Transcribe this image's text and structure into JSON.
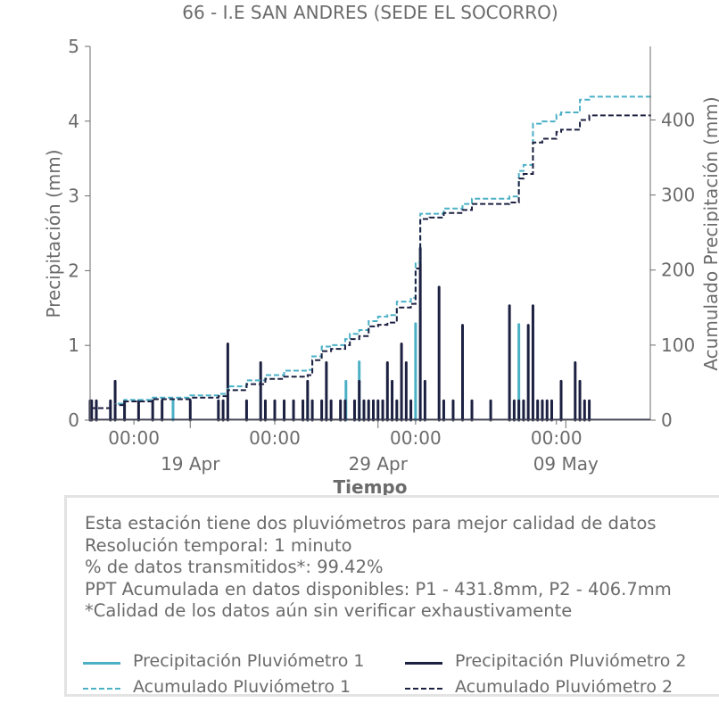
{
  "colors": {
    "p1": "#4bb0c6",
    "p2": "#1c2041",
    "text": "#6b6b6b",
    "axis": "#6b6b6b"
  },
  "chart_data": {
    "type": "line",
    "title": "66 - I.E SAN ANDRES (SEDE EL SOCORRO)",
    "xlabel": "Tiempo",
    "ylabel_left": "Precipitación (mm)",
    "ylabel_right": "Acumulado Precipitación (mm)",
    "x_range": [
      "2025-04-13T16:00",
      "2025-05-13T12:00"
    ],
    "ylim_left": [
      0,
      5
    ],
    "ylim_right": [
      0,
      498
    ],
    "yticks_left": [
      0,
      1,
      2,
      3,
      4,
      5
    ],
    "yticks_right": [
      0,
      100,
      200,
      300,
      400
    ],
    "xticks_minor": [
      {
        "x": "2025-04-16T00:00",
        "label": "00:00"
      },
      {
        "x": "2025-04-23T12:00",
        "label": "00:00"
      },
      {
        "x": "2025-05-01T00:00",
        "label": "00:00"
      },
      {
        "x": "2025-05-08T12:00",
        "label": "00:00"
      }
    ],
    "xticks_major": [
      {
        "x": "2025-04-19T00:00",
        "label": "19 Apr"
      },
      {
        "x": "2025-04-29T00:00",
        "label": "29 Apr"
      },
      {
        "x": "2025-05-09T00:00",
        "label": "09 May"
      }
    ],
    "series": [
      {
        "name": "Precipitación Pluviómetro 1",
        "axis": "left",
        "style": "solid",
        "color": "#4bb0c6",
        "points": [
          [
            "2025-04-18T02:00",
            0.27
          ],
          [
            "2025-04-25T06:00",
            0.27
          ],
          [
            "2025-04-27T07:00",
            0.52
          ],
          [
            "2025-04-28T00:00",
            0.78
          ],
          [
            "2025-05-01T00:00",
            1.29
          ],
          [
            "2025-05-06T12:00",
            1.28
          ]
        ]
      },
      {
        "name": "Precipitación Pluviómetro 2",
        "axis": "left",
        "style": "solid",
        "color": "#1c2041",
        "points": [
          [
            "2025-04-13T16:00",
            0.26
          ],
          [
            "2025-04-13T18:00",
            0.26
          ],
          [
            "2025-04-14T00:00",
            0.26
          ],
          [
            "2025-04-14T18:00",
            0.26
          ],
          [
            "2025-04-15T00:00",
            0.52
          ],
          [
            "2025-04-15T12:00",
            0.26
          ],
          [
            "2025-04-16T06:00",
            0.26
          ],
          [
            "2025-04-17T00:00",
            0.26
          ],
          [
            "2025-04-17T12:00",
            0.26
          ],
          [
            "2025-04-19T00:00",
            0.26
          ],
          [
            "2025-04-20T12:00",
            0.26
          ],
          [
            "2025-04-20T18:00",
            0.26
          ],
          [
            "2025-04-21T00:00",
            1.02
          ],
          [
            "2025-04-22T00:00",
            0.26
          ],
          [
            "2025-04-22T18:00",
            0.77
          ],
          [
            "2025-04-23T00:00",
            0.26
          ],
          [
            "2025-04-23T12:00",
            0.26
          ],
          [
            "2025-04-24T00:00",
            0.26
          ],
          [
            "2025-04-24T12:00",
            0.26
          ],
          [
            "2025-04-25T00:00",
            0.26
          ],
          [
            "2025-04-25T06:00",
            0.52
          ],
          [
            "2025-04-25T12:00",
            0.26
          ],
          [
            "2025-04-26T00:00",
            0.26
          ],
          [
            "2025-04-26T06:00",
            0.77
          ],
          [
            "2025-04-26T12:00",
            0.26
          ],
          [
            "2025-04-27T00:00",
            0.26
          ],
          [
            "2025-04-27T06:00",
            0.26
          ],
          [
            "2025-04-27T18:00",
            0.26
          ],
          [
            "2025-04-28T00:00",
            0.52
          ],
          [
            "2025-04-28T06:00",
            0.26
          ],
          [
            "2025-04-28T12:00",
            0.26
          ],
          [
            "2025-04-28T18:00",
            0.26
          ],
          [
            "2025-04-29T00:00",
            0.26
          ],
          [
            "2025-04-29T06:00",
            0.26
          ],
          [
            "2025-04-29T12:00",
            0.77
          ],
          [
            "2025-04-29T18:00",
            0.52
          ],
          [
            "2025-04-30T00:00",
            0.26
          ],
          [
            "2025-04-30T06:00",
            1.02
          ],
          [
            "2025-04-30T12:00",
            0.77
          ],
          [
            "2025-04-30T18:00",
            0.26
          ],
          [
            "2025-05-01T06:00",
            2.3
          ],
          [
            "2025-05-01T12:00",
            0.52
          ],
          [
            "2025-05-02T06:00",
            1.78
          ],
          [
            "2025-05-02T12:00",
            0.26
          ],
          [
            "2025-05-03T00:00",
            0.26
          ],
          [
            "2025-05-03T12:00",
            1.27
          ],
          [
            "2025-05-04T00:00",
            0.26
          ],
          [
            "2025-05-05T00:00",
            0.26
          ],
          [
            "2025-05-06T00:00",
            1.53
          ],
          [
            "2025-05-06T06:00",
            0.26
          ],
          [
            "2025-05-06T12:00",
            0.26
          ],
          [
            "2025-05-06T18:00",
            0.26
          ],
          [
            "2025-05-07T00:00",
            1.27
          ],
          [
            "2025-05-07T06:00",
            1.53
          ],
          [
            "2025-05-07T12:00",
            0.26
          ],
          [
            "2025-05-07T18:00",
            0.26
          ],
          [
            "2025-05-08T00:00",
            0.26
          ],
          [
            "2025-05-08T06:00",
            0.26
          ],
          [
            "2025-05-08T18:00",
            0.52
          ],
          [
            "2025-05-09T12:00",
            0.77
          ],
          [
            "2025-05-09T18:00",
            0.52
          ],
          [
            "2025-05-10T00:00",
            0.26
          ],
          [
            "2025-05-10T06:00",
            0.26
          ]
        ]
      },
      {
        "name": "Acumulado Pluviómetro 1",
        "axis": "right",
        "style": "dashed",
        "color": "#4bb0c6",
        "points": [
          [
            "2025-04-13T16:00",
            16
          ],
          [
            "2025-04-15T00:00",
            22
          ],
          [
            "2025-04-15T12:00",
            27
          ],
          [
            "2025-04-17T00:00",
            30
          ],
          [
            "2025-04-19T00:00",
            33
          ],
          [
            "2025-04-20T12:00",
            35
          ],
          [
            "2025-04-21T00:00",
            45
          ],
          [
            "2025-04-22T00:00",
            53
          ],
          [
            "2025-04-23T00:00",
            60
          ],
          [
            "2025-04-24T00:00",
            66
          ],
          [
            "2025-04-25T06:00",
            67
          ],
          [
            "2025-04-25T12:00",
            85
          ],
          [
            "2025-04-26T00:00",
            98
          ],
          [
            "2025-04-26T12:00",
            100
          ],
          [
            "2025-04-27T06:00",
            108
          ],
          [
            "2025-04-27T12:00",
            115
          ],
          [
            "2025-04-28T00:00",
            120
          ],
          [
            "2025-04-28T12:00",
            132
          ],
          [
            "2025-04-29T00:00",
            138
          ],
          [
            "2025-04-29T12:00",
            140
          ],
          [
            "2025-04-30T00:00",
            158
          ],
          [
            "2025-04-30T18:00",
            163
          ],
          [
            "2025-05-01T00:00",
            210
          ],
          [
            "2025-05-01T06:00",
            275
          ],
          [
            "2025-05-01T18:00",
            275
          ],
          [
            "2025-05-02T12:00",
            282
          ],
          [
            "2025-05-03T12:00",
            288
          ],
          [
            "2025-05-04T00:00",
            295
          ],
          [
            "2025-05-06T00:00",
            298
          ],
          [
            "2025-05-06T12:00",
            332
          ],
          [
            "2025-05-06T18:00",
            340
          ],
          [
            "2025-05-07T06:00",
            395
          ],
          [
            "2025-05-07T18:00",
            398
          ],
          [
            "2025-05-08T12:00",
            407
          ],
          [
            "2025-05-08T18:00",
            410
          ],
          [
            "2025-05-09T18:00",
            427
          ],
          [
            "2025-05-10T06:00",
            431
          ],
          [
            "2025-05-13T12:00",
            432
          ]
        ]
      },
      {
        "name": "Acumulado Pluviómetro 2",
        "axis": "right",
        "style": "dashed",
        "color": "#1c2041",
        "points": [
          [
            "2025-04-13T16:00",
            16
          ],
          [
            "2025-04-15T00:00",
            20
          ],
          [
            "2025-04-15T12:00",
            25
          ],
          [
            "2025-04-17T00:00",
            28
          ],
          [
            "2025-04-19T00:00",
            30
          ],
          [
            "2025-04-20T12:00",
            32
          ],
          [
            "2025-04-21T00:00",
            40
          ],
          [
            "2025-04-22T00:00",
            48
          ],
          [
            "2025-04-23T00:00",
            55
          ],
          [
            "2025-04-24T00:00",
            58
          ],
          [
            "2025-04-25T06:00",
            60
          ],
          [
            "2025-04-25T12:00",
            80
          ],
          [
            "2025-04-26T00:00",
            92
          ],
          [
            "2025-04-26T12:00",
            95
          ],
          [
            "2025-04-27T06:00",
            100
          ],
          [
            "2025-04-27T12:00",
            108
          ],
          [
            "2025-04-28T00:00",
            112
          ],
          [
            "2025-04-28T12:00",
            125
          ],
          [
            "2025-04-29T00:00",
            127
          ],
          [
            "2025-04-29T12:00",
            130
          ],
          [
            "2025-04-30T00:00",
            150
          ],
          [
            "2025-04-30T18:00",
            155
          ],
          [
            "2025-05-01T00:00",
            202
          ],
          [
            "2025-05-01T06:00",
            268
          ],
          [
            "2025-05-01T18:00",
            270
          ],
          [
            "2025-05-02T12:00",
            276
          ],
          [
            "2025-05-03T12:00",
            280
          ],
          [
            "2025-05-04T00:00",
            288
          ],
          [
            "2025-05-06T00:00",
            290
          ],
          [
            "2025-05-06T12:00",
            322
          ],
          [
            "2025-05-06T18:00",
            328
          ],
          [
            "2025-05-07T06:00",
            370
          ],
          [
            "2025-05-07T18:00",
            375
          ],
          [
            "2025-05-08T12:00",
            384
          ],
          [
            "2025-05-08T18:00",
            387
          ],
          [
            "2025-05-09T18:00",
            400
          ],
          [
            "2025-05-10T06:00",
            406
          ],
          [
            "2025-05-13T12:00",
            407
          ]
        ]
      }
    ]
  },
  "info_box": {
    "lines": [
      "Esta estación tiene dos pluviómetros para mejor calidad de datos",
      "Resolución temporal: 1 minuto",
      "% de datos transmitidos*: 99.42%",
      "PPT Acumulada en datos disponibles: P1 - 431.8mm, P2 - 406.7mm",
      "*Calidad de los datos aún sin verificar exhaustivamente"
    ]
  },
  "legend": {
    "items": [
      {
        "label": "Precipitación Pluviómetro 1",
        "color": "#4bb0c6",
        "style": "solid"
      },
      {
        "label": "Precipitación Pluviómetro 2",
        "color": "#1c2041",
        "style": "solid"
      },
      {
        "label": "Acumulado Pluviómetro 1",
        "color": "#4bb0c6",
        "style": "dashed"
      },
      {
        "label": "Acumulado Pluviómetro 2",
        "color": "#1c2041",
        "style": "dashed"
      }
    ]
  }
}
